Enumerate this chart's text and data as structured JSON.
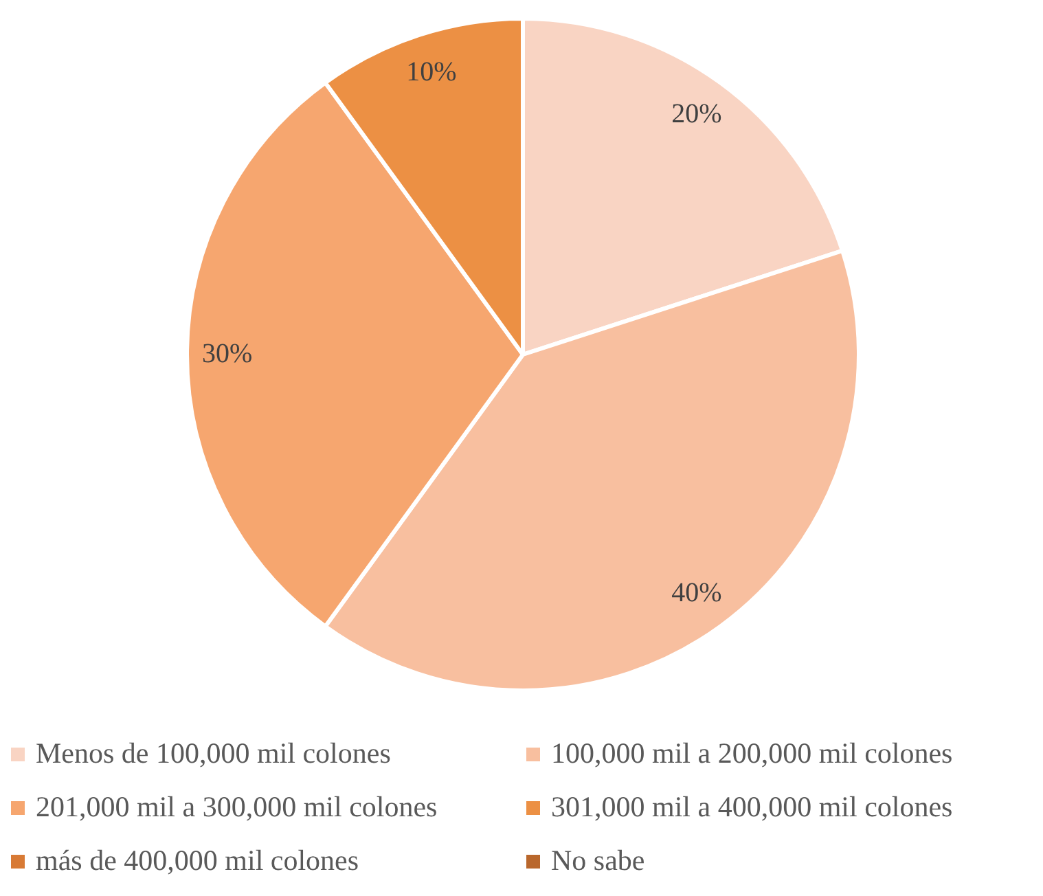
{
  "chart_data": {
    "type": "pie",
    "categories": [
      "Menos de 100,000 mil colones",
      "100,000 mil a 200,000 mil colones",
      "201,000 mil a 300,000 mil colones",
      "301,000 mil a 400,000 mil colones",
      "más de 400,000 mil colones",
      "No sabe"
    ],
    "values": [
      20,
      40,
      30,
      10,
      0,
      0
    ],
    "colors": [
      "#f9d4c3",
      "#f8bf9f",
      "#f6a66f",
      "#ec9044",
      "#d87a35",
      "#b9672c"
    ],
    "value_labels": [
      "20%",
      "40%",
      "30%",
      "10%",
      null,
      null
    ],
    "legend": "bottom"
  }
}
